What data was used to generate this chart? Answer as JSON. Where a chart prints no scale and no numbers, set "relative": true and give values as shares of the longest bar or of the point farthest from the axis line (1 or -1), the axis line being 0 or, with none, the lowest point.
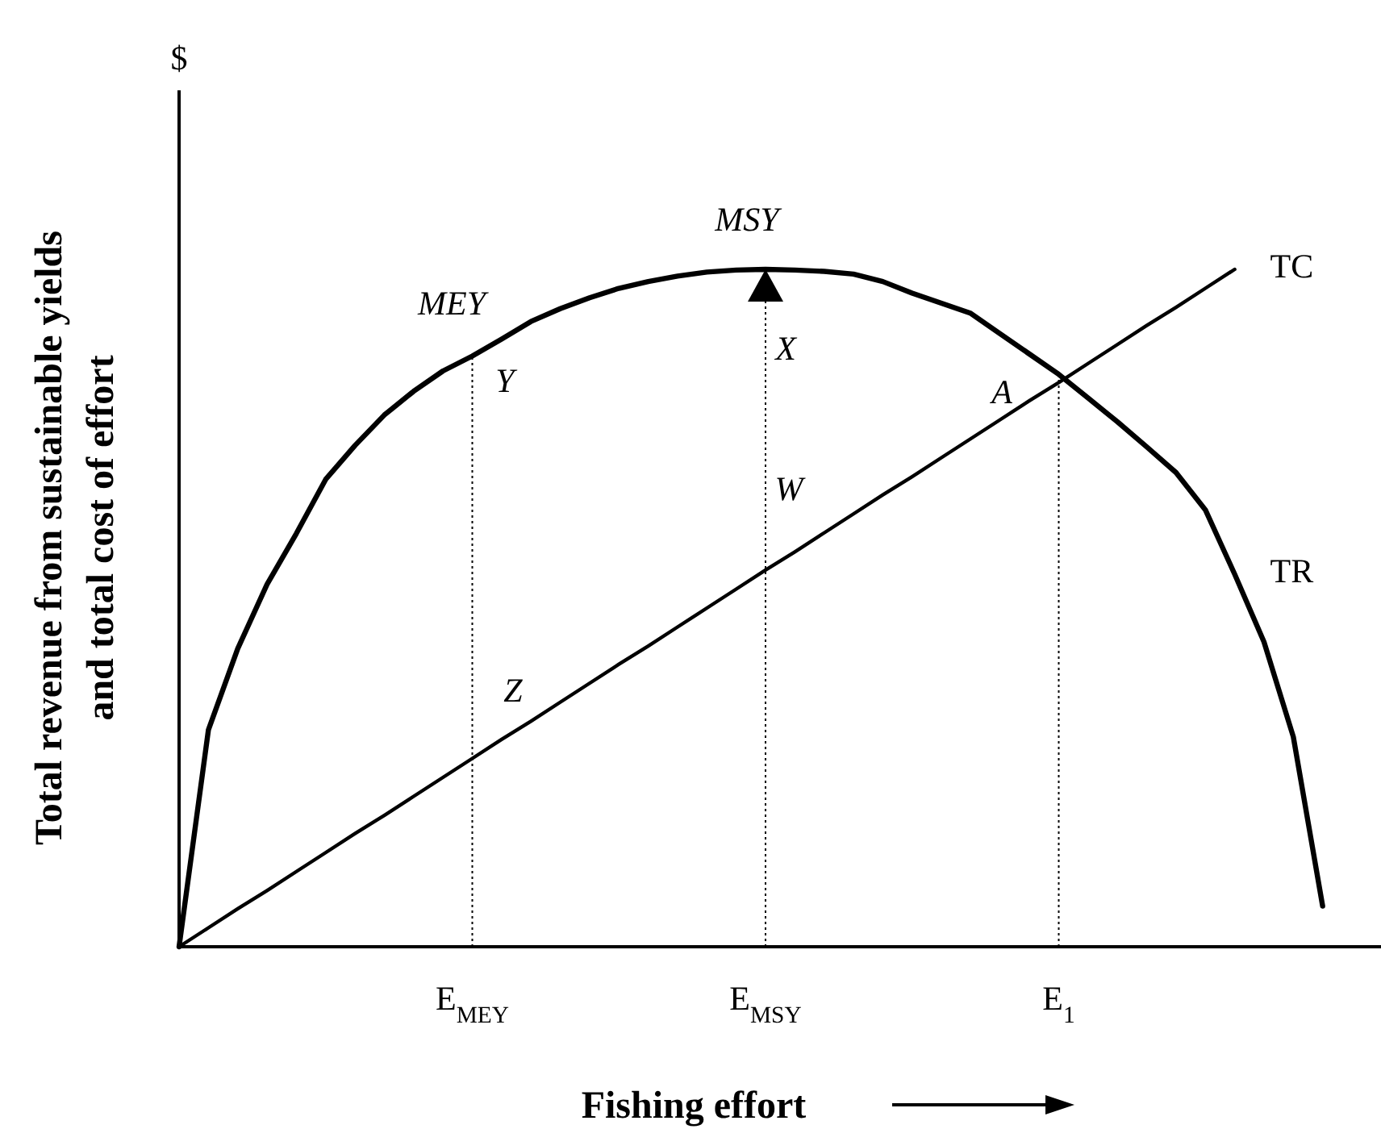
{
  "chart_data": {
    "type": "line",
    "relative": true,
    "xlabel": "Fishing effort",
    "ylabel": "Total revenue from sustainable yields\nand total cost of effort",
    "marker": "none",
    "categories": [
      null,
      null,
      null,
      null,
      null,
      null,
      null,
      null,
      null,
      null,
      "E$_{MEY}$",
      null,
      null,
      null,
      null,
      null,
      null,
      null,
      null,
      null,
      "E$_{MSY}$",
      null,
      null,
      null,
      null,
      null,
      null,
      null,
      null,
      null,
      "E$_{1}$",
      null,
      null,
      null,
      null,
      null,
      null,
      null,
      null,
      null,
      null
    ],
    "series": [
      {
        "name": "TR",
        "color": "#000000",
        "values": [
          0,
          0.32,
          0.44,
          0.535,
          0.61,
          0.69,
          0.74,
          0.785,
          0.82,
          0.85,
          0.872,
          0.897,
          0.923,
          0.942,
          0.958,
          0.972,
          0.982,
          0.99,
          0.996,
          0.999,
          1,
          0.999,
          0.997,
          0.993,
          0.982,
          0.965,
          0.95,
          0.935,
          0.905,
          0.875,
          0.845,
          0.81,
          0.775,
          0.738,
          0.7,
          0.645,
          0.55,
          0.45,
          0.31,
          0.06,
          null
        ]
      },
      {
        "name": "TC",
        "color": "#000000",
        "values": [
          0,
          0.028,
          0.056,
          0.083,
          0.111,
          0.139,
          0.167,
          0.194,
          0.222,
          0.25,
          0.278,
          0.306,
          0.333,
          0.361,
          0.389,
          0.417,
          0.444,
          0.472,
          0.5,
          0.528,
          0.556,
          0.583,
          0.611,
          0.639,
          0.667,
          0.694,
          0.722,
          0.75,
          0.778,
          0.806,
          0.833,
          0.861,
          0.889,
          0.917,
          0.944,
          0.972,
          1,
          null,
          null,
          null,
          null
        ]
      }
    ],
    "ref_lines": [
      {
        "axis": "x",
        "value": "E$_{MEY}$",
        "color": "#000000",
        "line_style": "dotted"
      },
      {
        "axis": "x",
        "value": "E$_{MSY}$",
        "color": "#000000",
        "line_style": "dotted"
      },
      {
        "axis": "x",
        "value": "E$_{1}$",
        "color": "#000000",
        "line_style": "dotted"
      }
    ],
    "annotations": [
      "$",
      "MEY",
      "MSY",
      "Y",
      "X",
      "W",
      "Z",
      "A"
    ]
  }
}
